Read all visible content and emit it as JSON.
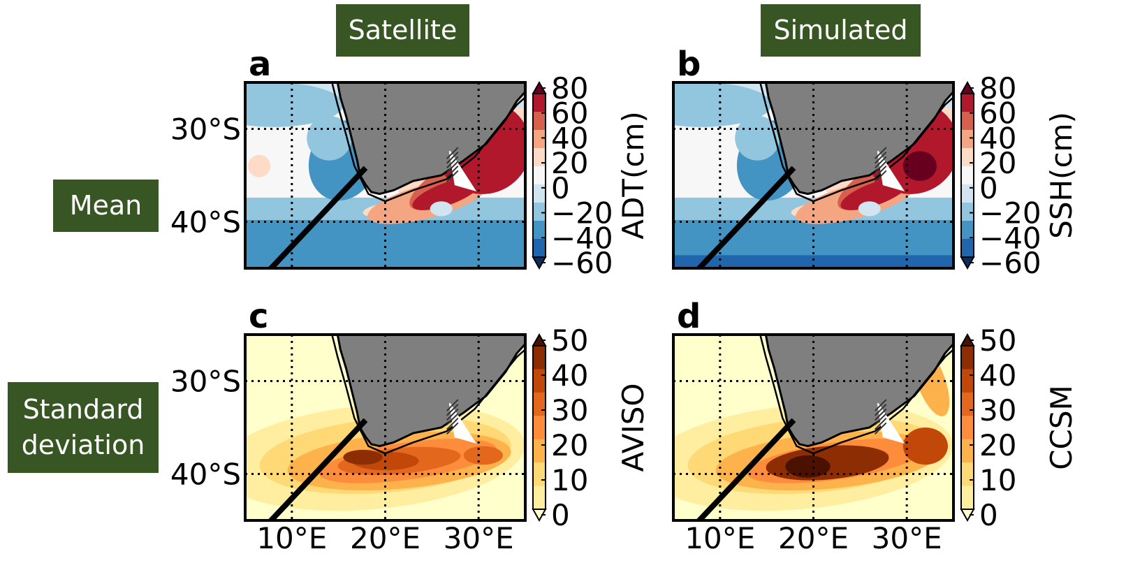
{
  "columns": {
    "left": "Satellite",
    "right": "Simulated"
  },
  "rows": {
    "top": "Mean",
    "bottom_line1": "Standard",
    "bottom_line2": "deviation"
  },
  "panels": [
    {
      "letter": "a",
      "cb_title": "ADT(cm)"
    },
    {
      "letter": "b",
      "cb_title": "SSH(cm)"
    },
    {
      "letter": "c",
      "cb_title": "AVISO"
    },
    {
      "letter": "d",
      "cb_title": "CCSM"
    }
  ],
  "lat_labels": [
    "30°S",
    "40°S"
  ],
  "lon_labels": [
    "10°E",
    "20°E",
    "30°E"
  ],
  "mean_ticks": [
    "80",
    "60",
    "40",
    "20",
    "0",
    "−20",
    "−40",
    "−60"
  ],
  "std_ticks": [
    "50",
    "40",
    "30",
    "20",
    "10",
    "0"
  ],
  "colors": {
    "land": "#7f7f7f",
    "tag_bg": "#375623",
    "mean_scale": [
      "#053061",
      "#2166ac",
      "#4393c3",
      "#92c5de",
      "#d1e5f0",
      "#f7f7f7",
      "#fddbc7",
      "#f4a582",
      "#d6604d",
      "#b2182b",
      "#67001f"
    ],
    "std_scale": [
      "#ffffcc",
      "#ffeda0",
      "#fed976",
      "#feb24c",
      "#fd8d3c",
      "#e3671c",
      "#c2480a",
      "#8c2d04",
      "#4a1000"
    ]
  },
  "chart_data": {
    "type": "heatmap",
    "map_extent": {
      "lon": [
        5,
        35
      ],
      "lat": [
        -45,
        -25
      ]
    },
    "gridlines": {
      "lon": [
        10,
        20,
        30
      ],
      "lat": [
        -30,
        -40
      ]
    },
    "mean_colorbar": {
      "range": [
        -60,
        80
      ],
      "ticks": [
        80,
        60,
        40,
        20,
        0,
        -20,
        -40,
        -60
      ],
      "extend": "both"
    },
    "std_colorbar": {
      "range": [
        0,
        50
      ],
      "ticks": [
        50,
        40,
        30,
        20,
        10,
        0
      ],
      "extend": "both"
    }
  }
}
